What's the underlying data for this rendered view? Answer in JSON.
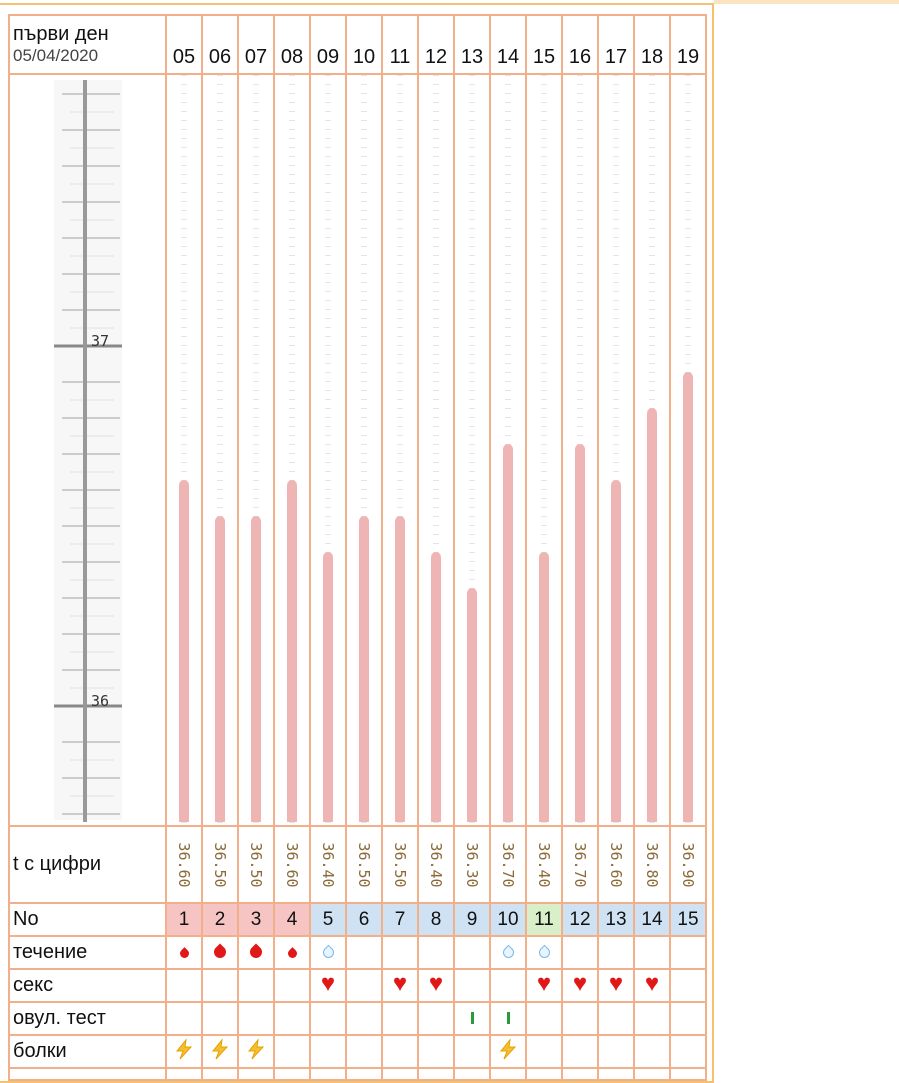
{
  "header": {
    "first_day_label": "първи ден",
    "first_day_date": "05/04/2020"
  },
  "days": [
    "05",
    "06",
    "07",
    "08",
    "09",
    "10",
    "11",
    "12",
    "13",
    "14",
    "15",
    "16",
    "17",
    "18",
    "19"
  ],
  "axis": {
    "labels": [
      "37",
      "36"
    ],
    "min": 35.7,
    "max": 37.7
  },
  "temps": [
    "36.60",
    "36.50",
    "36.50",
    "36.60",
    "36.40",
    "36.50",
    "36.50",
    "36.40",
    "36.30",
    "36.70",
    "36.40",
    "36.70",
    "36.60",
    "36.80",
    "36.90"
  ],
  "rows": {
    "temp_label": "t с цифри",
    "no_label": "No",
    "flow_label": "течение",
    "sex_label": "секс",
    "ovtest_label": "овул. тест",
    "pain_label": "болки"
  },
  "numbers": [
    "1",
    "2",
    "3",
    "4",
    "5",
    "6",
    "7",
    "8",
    "9",
    "10",
    "11",
    "12",
    "13",
    "14",
    "15"
  ],
  "number_phase": [
    "period",
    "period",
    "period",
    "period",
    "normal",
    "normal",
    "normal",
    "normal",
    "normal",
    "normal",
    "ovulation",
    "normal",
    "normal",
    "normal",
    "normal"
  ],
  "phase_colors": {
    "period": "#f7c4c4",
    "normal": "#cfe2f3",
    "ovulation": "#d9efc9"
  },
  "flow": [
    "small",
    "heavy",
    "heavy",
    "small",
    "discharge",
    "",
    "",
    "",
    "",
    "discharge",
    "discharge",
    "",
    "",
    "",
    ""
  ],
  "sex": [
    false,
    false,
    false,
    false,
    true,
    false,
    true,
    true,
    false,
    false,
    true,
    true,
    true,
    true,
    false
  ],
  "ovtest": [
    false,
    false,
    false,
    false,
    false,
    false,
    false,
    false,
    true,
    true,
    false,
    false,
    false,
    false,
    false
  ],
  "pain": [
    true,
    true,
    true,
    false,
    false,
    false,
    false,
    false,
    false,
    true,
    false,
    false,
    false,
    false,
    false
  ],
  "colors": {
    "bar": "#efb5b5",
    "grid": "#f2b08a",
    "blood": "#e01818",
    "discharge": "#7ab8e8"
  }
}
